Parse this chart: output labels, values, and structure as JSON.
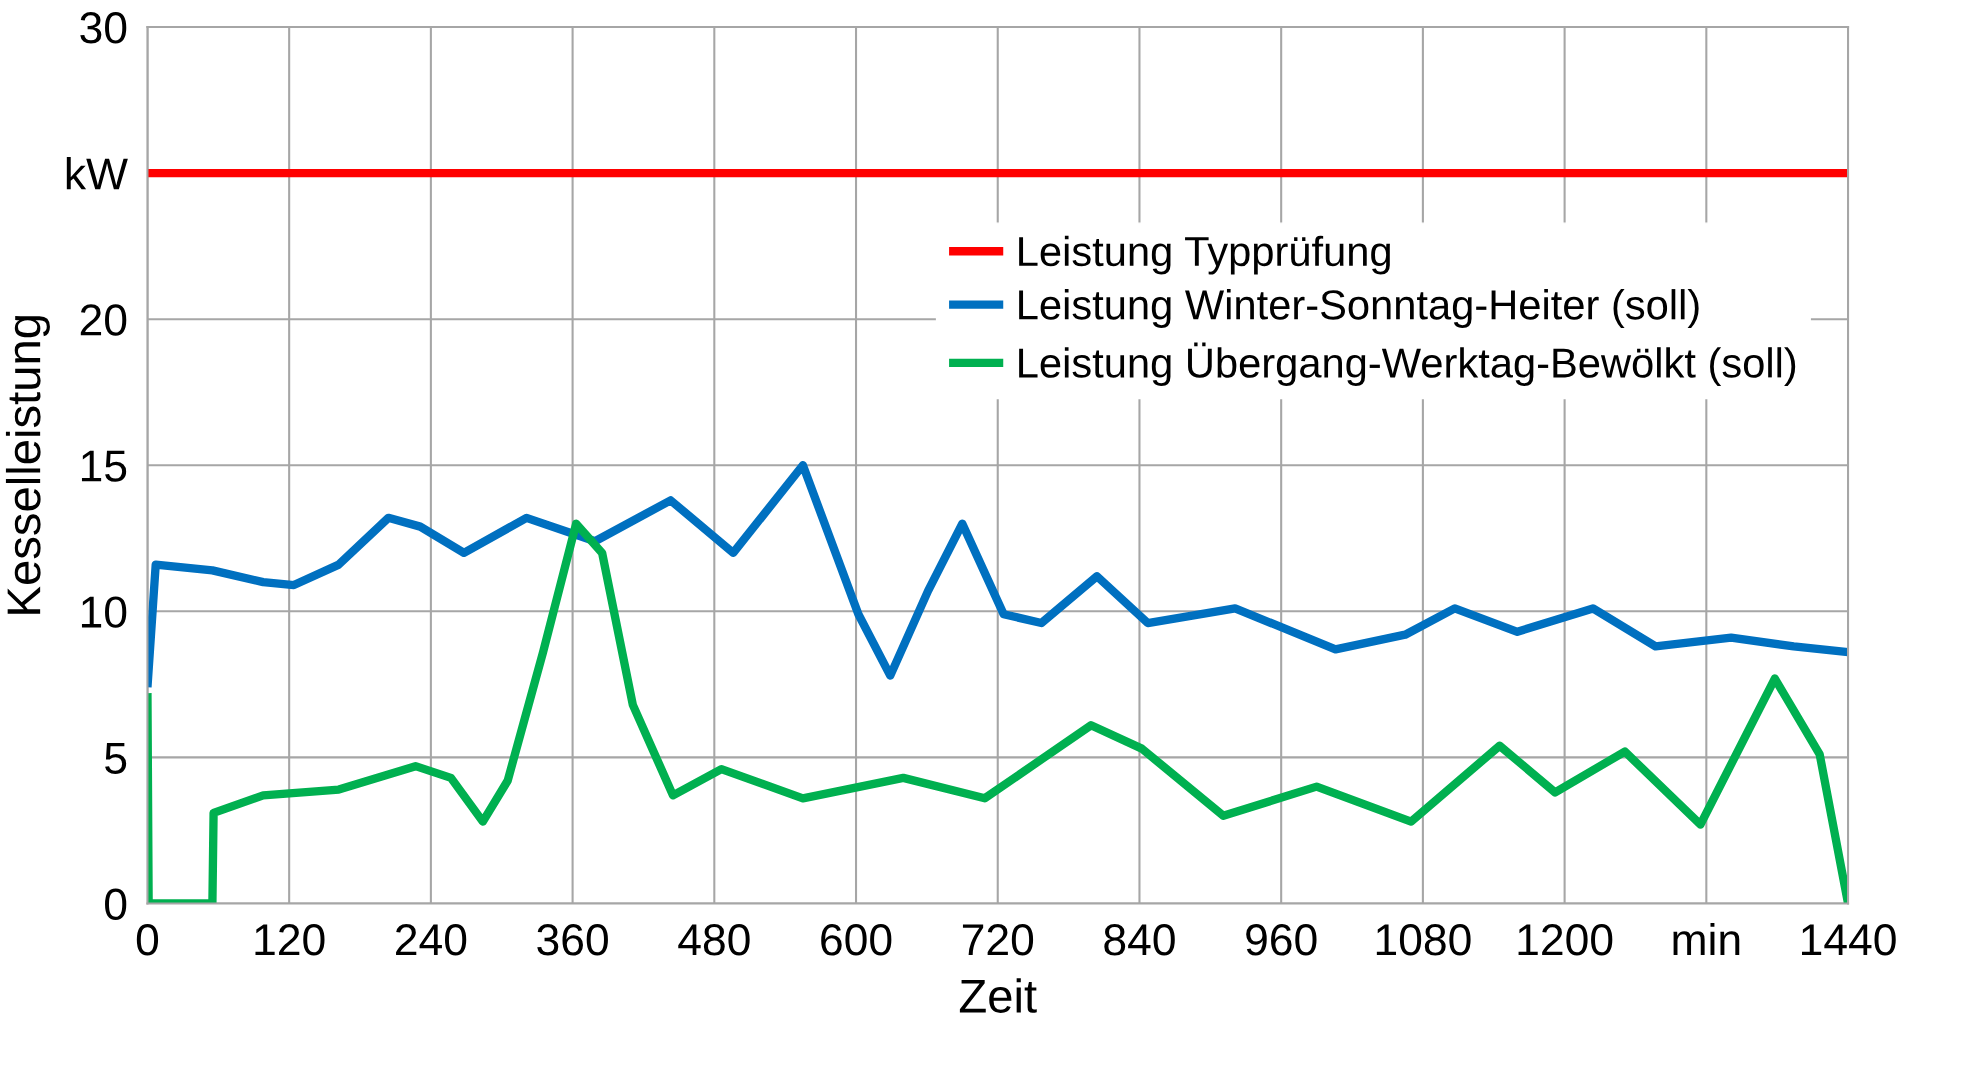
{
  "chart_data": {
    "type": "line",
    "xlabel": "Zeit",
    "ylabel": "Kesselleistung",
    "xlim": [
      0,
      1440
    ],
    "ylim": [
      0,
      30
    ],
    "xticks": [
      0,
      120,
      240,
      360,
      480,
      600,
      720,
      840,
      960,
      1080,
      1200,
      {
        "value": 1320,
        "label": "min"
      },
      1440
    ],
    "yticks": [
      0,
      5,
      10,
      15,
      20,
      {
        "value": 25,
        "label": "kW"
      },
      30
    ],
    "grid": true,
    "legend": "top right",
    "line_style": "solid",
    "marker": "none",
    "series": [
      {
        "name": "Leistung Typprüfung",
        "color": "#ff0000",
        "x": [
          0,
          1440
        ],
        "values": [
          25,
          25
        ]
      },
      {
        "name": "Leistung Winter-Sonntag-Heiter (soll)",
        "color": "#0070c0",
        "x": [
          0,
          7,
          55,
          98,
          124,
          162,
          204,
          231,
          268,
          321,
          379,
          443,
          496,
          555,
          602,
          629,
          661,
          690,
          725,
          757,
          804,
          847,
          921,
          1006,
          1065,
          1107,
          1160,
          1224,
          1277,
          1341,
          1394,
          1440
        ],
        "values": [
          7.4,
          11.6,
          11.4,
          11.0,
          10.9,
          11.6,
          13.2,
          12.9,
          12.0,
          13.2,
          12.4,
          13.8,
          12.0,
          15.0,
          9.9,
          7.8,
          10.7,
          13.0,
          9.9,
          9.6,
          11.2,
          9.6,
          10.1,
          8.7,
          9.2,
          10.1,
          9.3,
          10.1,
          8.8,
          9.1,
          8.8,
          8.6
        ]
      },
      {
        "name": "Leistung Übergang-Werktag-Bewölkt (soll)",
        "color": "#00b050",
        "x": [
          0,
          1,
          55,
          56,
          98,
          162,
          227,
          257,
          284,
          305,
          335,
          363,
          385,
          411,
          445,
          486,
          555,
          640,
          709,
          799,
          842,
          911,
          990,
          1070,
          1145,
          1192,
          1251,
          1315,
          1378,
          1416,
          1440
        ],
        "values": [
          7.2,
          0,
          0,
          3.1,
          3.7,
          3.9,
          4.7,
          4.3,
          2.8,
          4.2,
          8.6,
          13.0,
          12.0,
          6.8,
          3.7,
          4.6,
          3.6,
          4.3,
          3.6,
          6.1,
          5.3,
          3.0,
          4.0,
          2.8,
          5.4,
          3.8,
          5.2,
          2.7,
          7.7,
          5.1,
          0
        ]
      }
    ]
  }
}
